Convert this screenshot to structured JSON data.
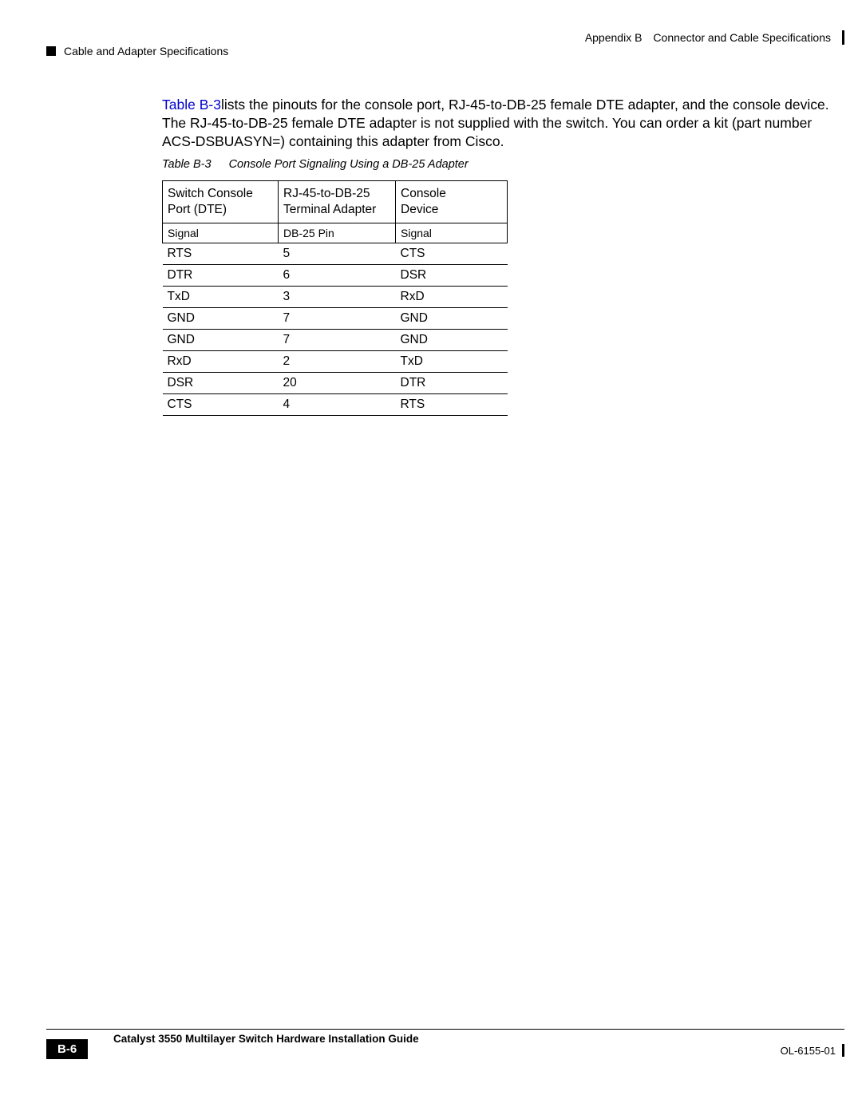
{
  "header": {
    "appendix_label": "Appendix B",
    "appendix_title": "Connector and Cable Specifications",
    "section_title": "Cable and Adapter Specifications"
  },
  "paragraph": {
    "link_text": "Table B-3",
    "rest": "lists the pinouts for the console port, RJ-45-to-DB-25 female DTE adapter, and the console device. The RJ-45-to-DB-25 female DTE adapter is not supplied with the switch. You can order a kit (part number ACS-DSBUASYN=) containing this adapter from Cisco."
  },
  "table": {
    "label": "Table B-3",
    "title": "Console Port Signaling Using a DB-25 Adapter",
    "head1": {
      "c1a": "Switch Console",
      "c1b": "Port (DTE)",
      "c2a": "RJ-45-to-DB-25",
      "c2b": "Terminal Adapter",
      "c3a": "Console",
      "c3b": "Device"
    },
    "head2": {
      "c1": "Signal",
      "c2": "DB-25 Pin",
      "c3": "Signal"
    },
    "rows": [
      {
        "c1": "RTS",
        "c2": "5",
        "c3": "CTS"
      },
      {
        "c1": "DTR",
        "c2": "6",
        "c3": "DSR"
      },
      {
        "c1": "TxD",
        "c2": "3",
        "c3": "RxD"
      },
      {
        "c1": "GND",
        "c2": "7",
        "c3": "GND"
      },
      {
        "c1": "GND",
        "c2": "7",
        "c3": "GND"
      },
      {
        "c1": "RxD",
        "c2": "2",
        "c3": "TxD"
      },
      {
        "c1": "DSR",
        "c2": "20",
        "c3": "DTR"
      },
      {
        "c1": "CTS",
        "c2": "4",
        "c3": "RTS"
      }
    ]
  },
  "footer": {
    "guide_title": "Catalyst 3550 Multilayer Switch Hardware Installation Guide",
    "page_number": "B-6",
    "doc_id": "OL-6155-01"
  },
  "colors": {
    "link": "#0000cc",
    "text": "#000000",
    "page_bg": "#ffffff"
  }
}
